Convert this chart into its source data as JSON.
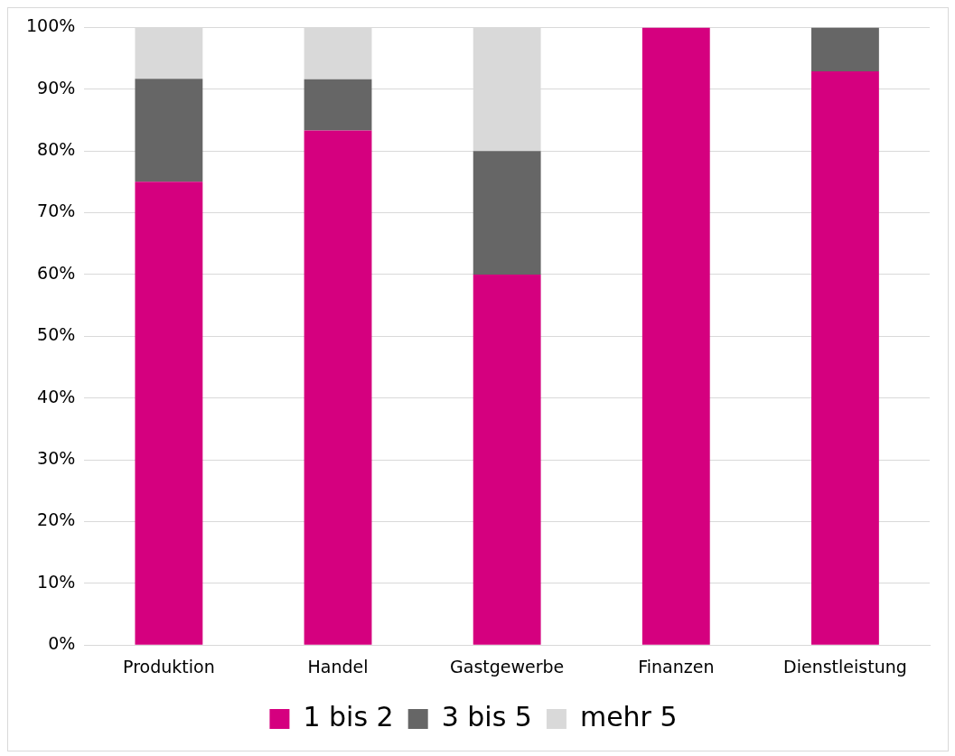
{
  "chart_data": {
    "type": "bar",
    "stacked": true,
    "categories": [
      "Produktion",
      "Handel",
      "Gastgewerbe",
      "Finanzen",
      "Dienstleistung"
    ],
    "series": [
      {
        "name": "1 bis 2",
        "color": "#d5007f",
        "values": [
          75,
          83.3,
          60,
          100,
          92.9
        ]
      },
      {
        "name": "3 bis 5",
        "color": "#666666",
        "values": [
          16.7,
          8.3,
          20,
          0,
          7.1
        ]
      },
      {
        "name": "mehr 5",
        "color": "#d9d9d9",
        "values": [
          8.3,
          8.3,
          20,
          0,
          0
        ]
      }
    ],
    "ylim": [
      0,
      100
    ],
    "yticks": [
      {
        "value": 0,
        "label": "0%"
      },
      {
        "value": 10,
        "label": "10%"
      },
      {
        "value": 20,
        "label": "20%"
      },
      {
        "value": 30,
        "label": "30%"
      },
      {
        "value": 40,
        "label": "40%"
      },
      {
        "value": 50,
        "label": "50%"
      },
      {
        "value": 60,
        "label": "60%"
      },
      {
        "value": 70,
        "label": "70%"
      },
      {
        "value": 80,
        "label": "80%"
      },
      {
        "value": 90,
        "label": "90%"
      },
      {
        "value": 100,
        "label": "100%"
      }
    ],
    "grid": "y",
    "legend": "bottom"
  }
}
